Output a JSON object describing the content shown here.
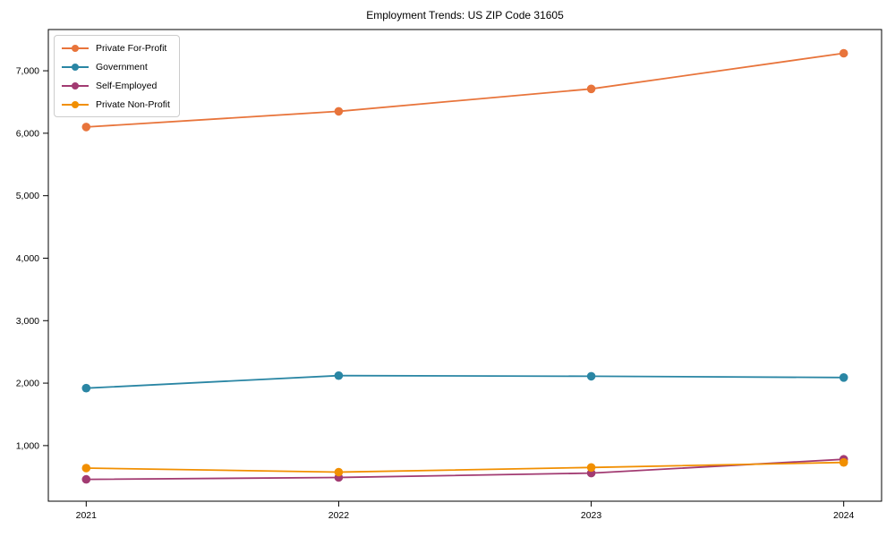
{
  "chart_data": {
    "type": "line",
    "title": "Employment Trends: US ZIP Code 31605",
    "xlabel": "",
    "ylabel": "",
    "x": [
      2021,
      2022,
      2023,
      2024
    ],
    "x_tick_labels": [
      "2021",
      "2022",
      "2023",
      "2024"
    ],
    "series": [
      {
        "name": "Private For-Profit",
        "color": "#e8743b",
        "values": [
          6100,
          6350,
          6710,
          7280
        ]
      },
      {
        "name": "Government",
        "color": "#2a86a4",
        "values": [
          1920,
          2120,
          2110,
          2090
        ]
      },
      {
        "name": "Self-Employed",
        "color": "#a23b72",
        "values": [
          460,
          490,
          560,
          780
        ]
      },
      {
        "name": "Private Non-Profit",
        "color": "#f18f01",
        "values": [
          640,
          575,
          650,
          730
        ]
      }
    ],
    "xlim": [
      2020.85,
      2024.15
    ],
    "ylim": [
      110,
      7660
    ],
    "yticks": [
      1000,
      2000,
      3000,
      4000,
      5000,
      6000,
      7000
    ],
    "ytick_labels": [
      "1,000",
      "2,000",
      "3,000",
      "4,000",
      "5,000",
      "6,000",
      "7,000"
    ],
    "grid": false,
    "legend_position": "upper-left",
    "axis_color": "#000000",
    "background_color": "#ffffff",
    "marker": "circle"
  }
}
